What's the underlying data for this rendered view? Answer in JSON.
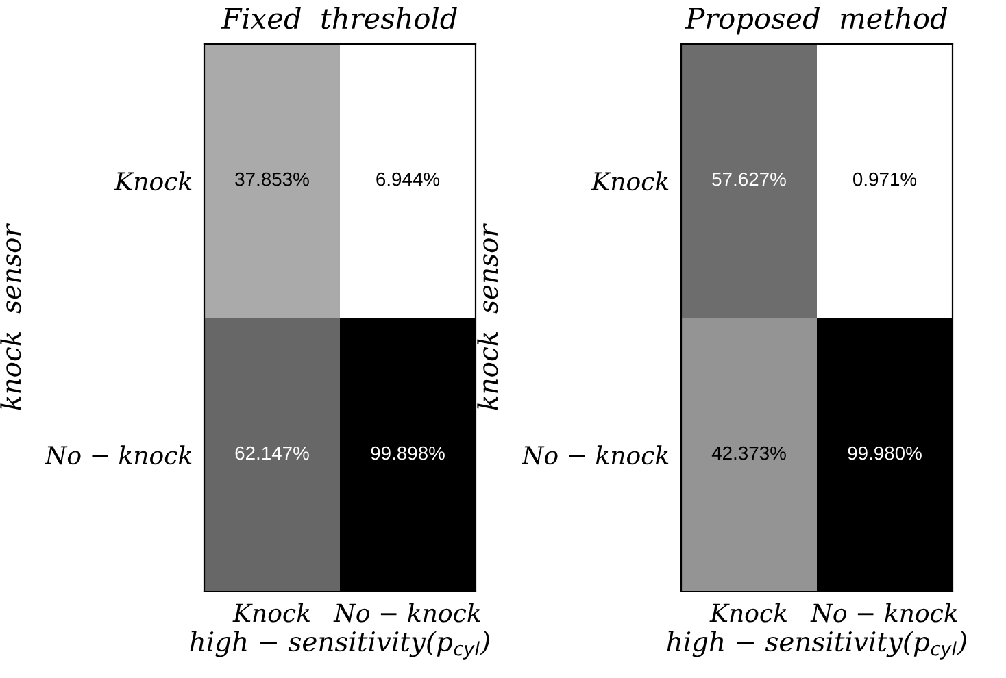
{
  "chart_data": [
    {
      "type": "heatmap",
      "title": "Fixed  threshold",
      "xlabel": "high − sensitivity(p$_{cyl}$)",
      "ylabel": "knock  sensor",
      "categories": [
        "Knock",
        "No − knock"
      ],
      "y_categories": [
        "Knock",
        "No − knock"
      ],
      "cells": [
        [
          37.853,
          6.944
        ],
        [
          62.147,
          99.898
        ]
      ],
      "cell_labels": [
        [
          "37.853%",
          "6.944%"
        ],
        [
          "62.147%",
          "99.898%"
        ]
      ]
    },
    {
      "type": "heatmap",
      "title": "Proposed  method",
      "xlabel": "high − sensitivity(p$_{cyl}$)",
      "ylabel": "knock  sensor",
      "categories": [
        "Knock",
        "No − knock"
      ],
      "y_categories": [
        "Knock",
        "No − knock"
      ],
      "cells": [
        [
          57.627,
          0.971
        ],
        [
          42.373,
          99.98
        ]
      ],
      "cell_labels": [
        [
          "57.627%",
          "0.971%"
        ],
        [
          "42.373%",
          "99.980%"
        ]
      ]
    }
  ]
}
